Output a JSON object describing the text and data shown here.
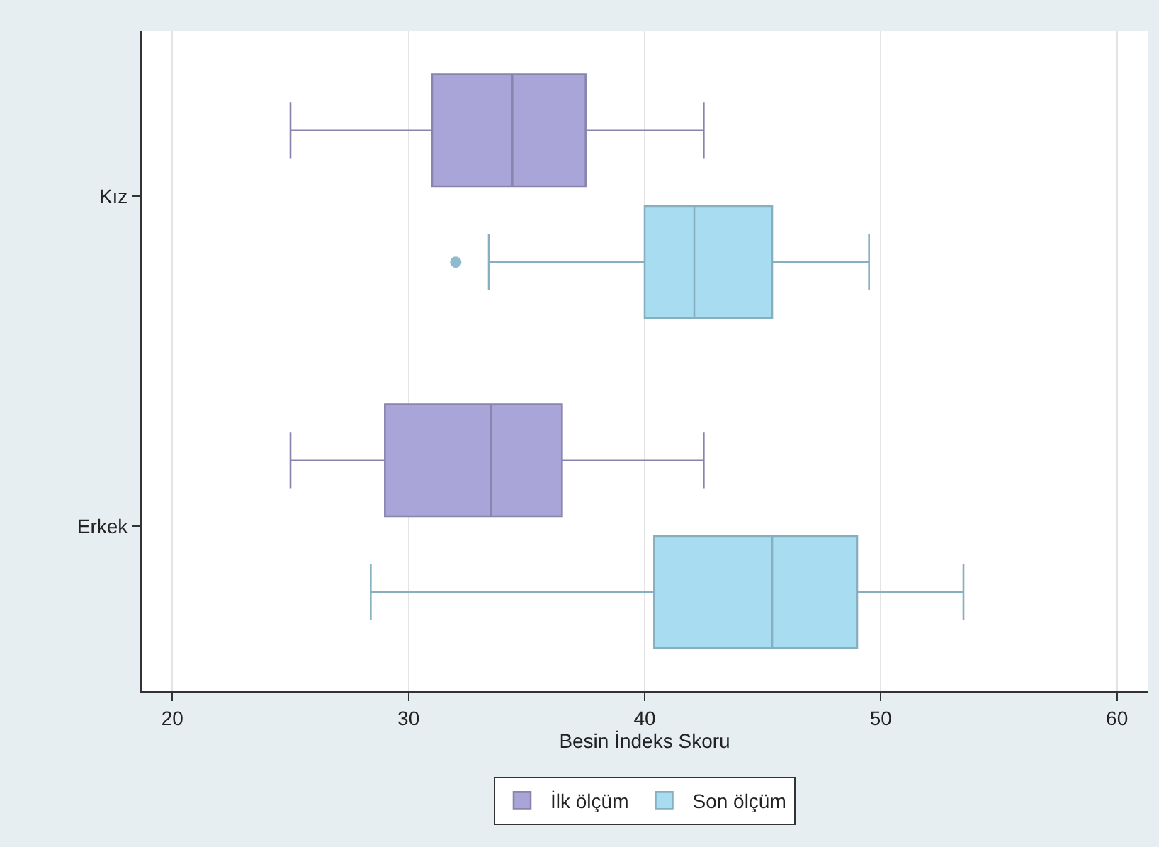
{
  "chart_data": {
    "type": "box",
    "orientation": "horizontal",
    "xlabel": "Besin İndeks Skoru",
    "categories": [
      "Kız",
      "Erkek"
    ],
    "xlim": [
      18.7,
      61.3
    ],
    "xticks": [
      20,
      30,
      40,
      50,
      60
    ],
    "grid": "x",
    "legend": "bottom",
    "series": [
      {
        "name": "İlk ölçüm",
        "color": "#aaa5d8",
        "boxes": [
          {
            "low": 25,
            "q1": 31,
            "median": 34.4,
            "q3": 37.5,
            "high": 42.5
          },
          {
            "low": 25,
            "q1": 29,
            "median": 33.5,
            "q3": 36.5,
            "high": 42.5
          }
        ]
      },
      {
        "name": "Son ölçüm",
        "color": "#a8dcf0",
        "boxes": [
          {
            "low": 33.4,
            "q1": 40,
            "median": 42.1,
            "q3": 45.4,
            "high": 49.5,
            "outliers": [
              32
            ]
          },
          {
            "low": 28.4,
            "q1": 40.4,
            "median": 45.4,
            "q3": 49,
            "high": 53.5
          }
        ]
      }
    ]
  }
}
